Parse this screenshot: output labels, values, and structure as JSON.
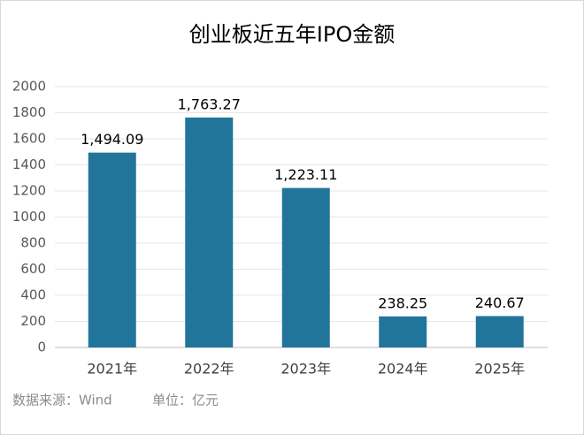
{
  "chart_data": {
    "type": "bar",
    "title": "创业板近五年IPO金额",
    "categories": [
      "2021年",
      "2022年",
      "2023年",
      "2024年",
      "2025年"
    ],
    "values": [
      1494.09,
      1763.27,
      1223.11,
      238.25,
      240.67
    ],
    "value_labels": [
      "1,494.09",
      "1,763.27",
      "1,223.11",
      "238.25",
      "240.67"
    ],
    "color": "#21759b",
    "ylim": [
      0,
      2000
    ],
    "yticks": [
      0,
      200,
      400,
      600,
      800,
      1000,
      1200,
      1400,
      1600,
      1800,
      2000
    ],
    "grid": true,
    "source": "数据来源：Wind",
    "unit": "单位：亿元"
  }
}
